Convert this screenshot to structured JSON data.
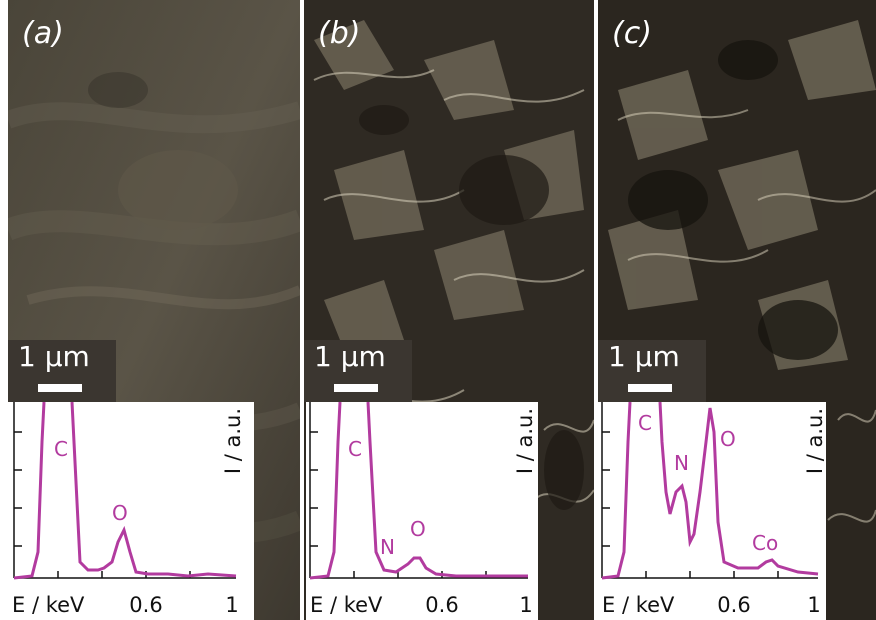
{
  "figure": {
    "panels": [
      {
        "label": "(a)",
        "scale_bar_text": "1 µm",
        "eds": {
          "y_label": "I / a.u.",
          "x_label": "E / keV",
          "x_ticks": [
            "0.6",
            "1"
          ],
          "peaks": [
            "C",
            "O"
          ]
        }
      },
      {
        "label": "(b)",
        "scale_bar_text": "1 µm",
        "eds": {
          "y_label": "I / a.u.",
          "x_label": "E / keV",
          "x_ticks": [
            "0.6",
            "1"
          ],
          "peaks": [
            "C",
            "N",
            "O"
          ]
        }
      },
      {
        "label": "(c)",
        "scale_bar_text": "1 µm",
        "eds": {
          "y_label": "I / a.u.",
          "x_label": "E / keV",
          "x_ticks": [
            "0.6",
            "1"
          ],
          "peaks": [
            "C",
            "N",
            "O",
            "Co"
          ]
        }
      }
    ]
  },
  "colors": {
    "spectrum": "#b23b9f",
    "sem_panel_a": "#4a443b",
    "sem_panel_b": "#3a342c",
    "sem_panel_c": "#3a342c"
  }
}
